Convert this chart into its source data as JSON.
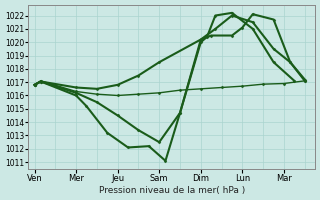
{
  "background_color": "#cce8e4",
  "grid_color": "#aad4cf",
  "line_color": "#1a5c1a",
  "xlabel": "Pression niveau de la mer( hPa )",
  "ylim": [
    1010.5,
    1022.8
  ],
  "yticks": [
    1011,
    1012,
    1013,
    1014,
    1015,
    1016,
    1017,
    1018,
    1019,
    1020,
    1021,
    1022
  ],
  "day_labels": [
    "Ven",
    "Mer",
    "Jeu",
    "Sam",
    "Dim",
    "Lun",
    "Mar"
  ],
  "day_positions": [
    0,
    2,
    4,
    6,
    8,
    10,
    12
  ],
  "xlim": [
    -0.3,
    13.5
  ],
  "xticks_minor": [
    0,
    1,
    2,
    3,
    4,
    5,
    6,
    7,
    8,
    9,
    10,
    11,
    12,
    13
  ],
  "lines": [
    {
      "x": [
        0,
        0.3,
        2,
        3,
        4,
        5,
        6,
        7,
        8,
        9,
        10,
        11,
        12,
        13
      ],
      "y": [
        1016.8,
        1017.1,
        1016.3,
        1016.1,
        1016.0,
        1016.1,
        1016.2,
        1016.4,
        1016.5,
        1016.6,
        1016.7,
        1016.85,
        1016.9,
        1017.1
      ],
      "lw": 1.0,
      "marker": true
    },
    {
      "x": [
        0,
        0.3,
        2,
        2.5,
        3.5,
        4.5,
        5.5,
        6.3,
        7,
        8,
        8.3,
        8.7,
        9.5,
        10.5,
        11.5,
        12.5
      ],
      "y": [
        1016.8,
        1017.05,
        1016.0,
        1015.2,
        1013.2,
        1012.1,
        1012.2,
        1011.1,
        1014.7,
        1020.0,
        1020.4,
        1022.0,
        1022.2,
        1021.0,
        1018.5,
        1017.1
      ],
      "lw": 1.5,
      "marker": true
    },
    {
      "x": [
        0,
        0.3,
        2,
        3,
        4,
        5,
        6,
        7,
        8,
        8.5,
        9.5,
        10,
        10.5,
        11.5,
        12.3,
        13
      ],
      "y": [
        1016.8,
        1017.05,
        1016.2,
        1015.5,
        1014.5,
        1013.4,
        1012.5,
        1014.7,
        1020.2,
        1020.5,
        1020.5,
        1021.1,
        1022.1,
        1021.7,
        1018.5,
        1017.1
      ],
      "lw": 1.5,
      "marker": true
    },
    {
      "x": [
        0,
        0.3,
        2,
        3,
        4,
        5,
        6,
        8,
        8.7,
        9.5,
        10.5,
        11.5,
        12.3,
        13
      ],
      "y": [
        1016.8,
        1017.05,
        1016.6,
        1016.5,
        1016.8,
        1017.5,
        1018.5,
        1020.2,
        1021.0,
        1022.0,
        1021.5,
        1019.5,
        1018.5,
        1017.2
      ],
      "lw": 1.5,
      "marker": true
    }
  ]
}
